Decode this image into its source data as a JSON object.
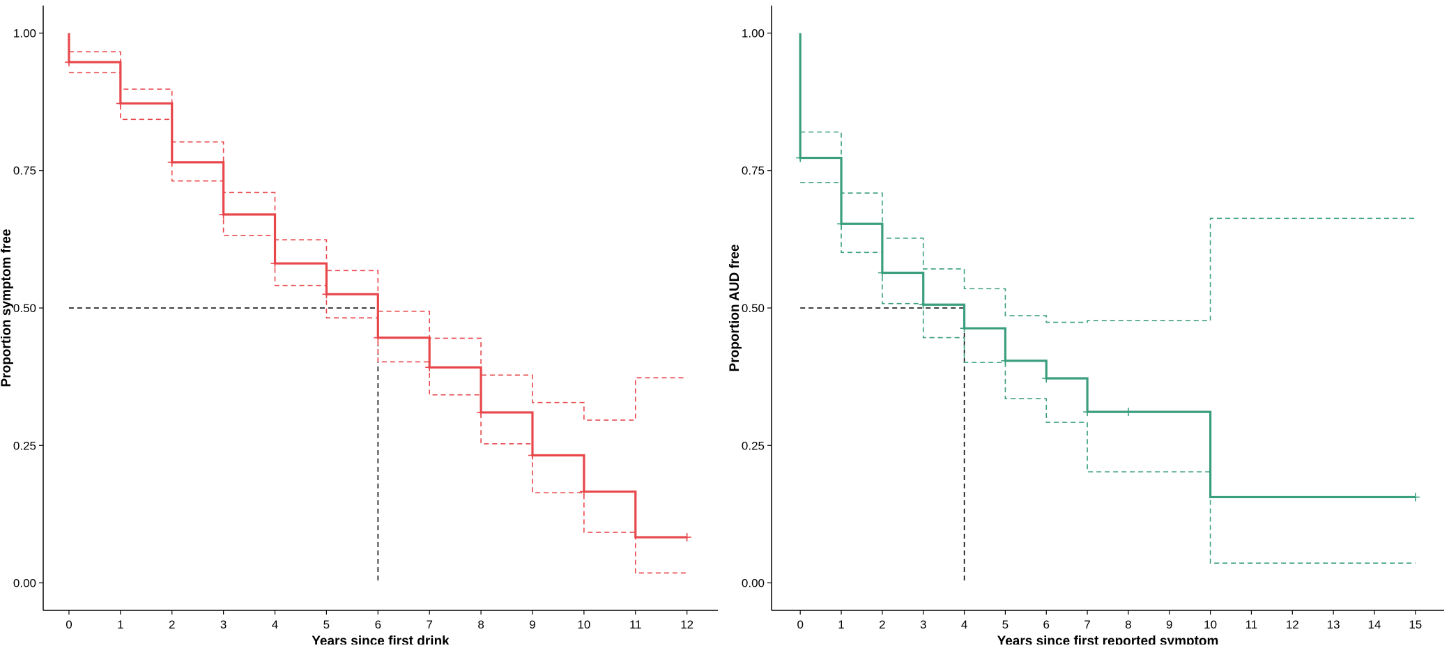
{
  "chart_data": [
    {
      "type": "line",
      "title": "",
      "xlabel": "Years since first drink",
      "ylabel": "Proportion symptom free",
      "xlim": [
        -0.5,
        12.6
      ],
      "ylim": [
        -0.05,
        1.05
      ],
      "xticks": [
        0,
        1,
        2,
        3,
        4,
        5,
        6,
        7,
        8,
        9,
        10,
        11,
        12
      ],
      "yticks": [
        0.0,
        0.25,
        0.5,
        0.75,
        1.0
      ],
      "ytick_labels": [
        "0.00",
        "0.25",
        "0.50",
        "0.75",
        "1.00"
      ],
      "color": "#e8474b",
      "series": [
        {
          "role": "survival",
          "x": [
            0,
            1,
            2,
            3,
            4,
            5,
            6,
            7,
            8,
            9,
            10,
            11
          ],
          "values": [
            0.947,
            0.872,
            0.765,
            0.67,
            0.581,
            0.525,
            0.446,
            0.392,
            0.31,
            0.232,
            0.166,
            0.083
          ],
          "x_end": 12,
          "censor_marks": [
            [
              0,
              0.947
            ],
            [
              1,
              0.872
            ],
            [
              2,
              0.765
            ],
            [
              3,
              0.67
            ],
            [
              4,
              0.581
            ],
            [
              5,
              0.525
            ],
            [
              6,
              0.446
            ],
            [
              7,
              0.392
            ],
            [
              8,
              0.31
            ],
            [
              9,
              0.232
            ],
            [
              10,
              0.166
            ],
            [
              12,
              0.083
            ]
          ]
        },
        {
          "role": "upper-ci",
          "x": [
            0,
            1,
            2,
            3,
            4,
            5,
            6,
            7,
            8,
            9,
            10,
            11
          ],
          "values": [
            0.966,
            0.898,
            0.802,
            0.71,
            0.624,
            0.568,
            0.494,
            0.445,
            0.378,
            0.328,
            0.296,
            0.373
          ],
          "x_end": 12
        },
        {
          "role": "lower-ci",
          "x": [
            0,
            1,
            2,
            3,
            4,
            5,
            6,
            7,
            8,
            9,
            10,
            11
          ],
          "values": [
            0.928,
            0.843,
            0.731,
            0.632,
            0.541,
            0.482,
            0.402,
            0.342,
            0.253,
            0.164,
            0.092,
            0.018
          ],
          "x_end": 12
        }
      ],
      "median_line": {
        "y": 0.5,
        "x": 6
      }
    },
    {
      "type": "line",
      "title": "",
      "xlabel": "Years since first reported symptom",
      "ylabel": "Proportion AUD free",
      "xlim": [
        -0.7,
        15.7
      ],
      "ylim": [
        -0.05,
        1.05
      ],
      "xticks": [
        0,
        1,
        2,
        3,
        4,
        5,
        6,
        7,
        8,
        9,
        10,
        11,
        12,
        13,
        14,
        15
      ],
      "yticks": [
        0.0,
        0.25,
        0.5,
        0.75,
        1.0
      ],
      "ytick_labels": [
        "0.00",
        "0.25",
        "0.50",
        "0.75",
        "1.00"
      ],
      "color": "#3a9e7f",
      "series": [
        {
          "role": "survival",
          "x": [
            0,
            1,
            2,
            3,
            4,
            5,
            6,
            7,
            10
          ],
          "values": [
            0.773,
            0.653,
            0.564,
            0.506,
            0.463,
            0.404,
            0.372,
            0.311,
            0.156
          ],
          "x_end": 15,
          "censor_marks": [
            [
              0,
              0.773
            ],
            [
              1,
              0.653
            ],
            [
              2,
              0.564
            ],
            [
              3,
              0.506
            ],
            [
              4,
              0.463
            ],
            [
              5,
              0.404
            ],
            [
              6,
              0.372
            ],
            [
              7,
              0.311
            ],
            [
              8,
              0.311
            ],
            [
              15,
              0.156
            ]
          ]
        },
        {
          "role": "upper-ci",
          "x": [
            0,
            1,
            2,
            3,
            4,
            5,
            6,
            7,
            10
          ],
          "values": [
            0.82,
            0.709,
            0.627,
            0.571,
            0.535,
            0.486,
            0.474,
            0.477,
            0.663
          ],
          "x_end": 15
        },
        {
          "role": "lower-ci",
          "x": [
            0,
            1,
            2,
            3,
            4,
            5,
            6,
            7,
            10
          ],
          "values": [
            0.728,
            0.601,
            0.508,
            0.446,
            0.401,
            0.335,
            0.292,
            0.202,
            0.036
          ],
          "x_end": 15
        }
      ],
      "median_line": {
        "y": 0.5,
        "x": 4
      }
    }
  ]
}
